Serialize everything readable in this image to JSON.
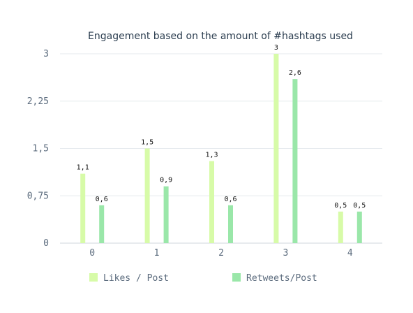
{
  "chart_data": {
    "type": "bar",
    "title": "Engagement based on the amount of #hashtags used",
    "xlabel": "",
    "ylabel": "",
    "categories": [
      "0",
      "1",
      "2",
      "3",
      "4"
    ],
    "series": [
      {
        "name": "Likes / Post",
        "values": [
          1.1,
          1.5,
          1.3,
          3,
          0.5
        ],
        "labels": [
          "1,1",
          "1,5",
          "1,3",
          "3",
          "0,5"
        ],
        "color": "#d7fba8"
      },
      {
        "name": "Retweets/Post",
        "values": [
          0.6,
          0.9,
          0.6,
          2.6,
          0.5
        ],
        "labels": [
          "0,6",
          "0,9",
          "0,6",
          "2,6",
          "0,5"
        ],
        "color": "#9ae7a9"
      }
    ],
    "yticks": [
      0,
      0.75,
      1.5,
      2.25,
      3
    ],
    "ytick_labels": [
      "0",
      "0,75",
      "1,5",
      "2,25",
      "3"
    ],
    "ylim": [
      0,
      3
    ],
    "grid": true,
    "legend": "bottom"
  }
}
